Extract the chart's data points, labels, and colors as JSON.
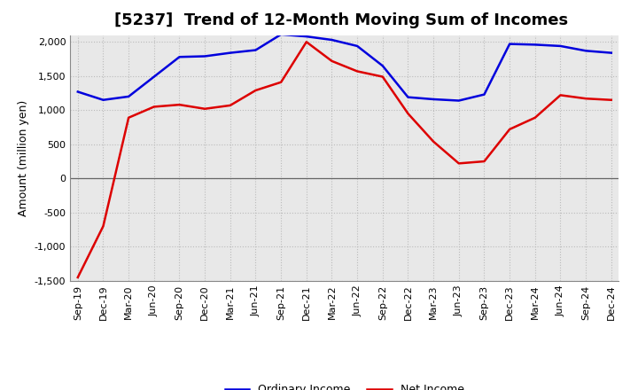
{
  "title": "[5237]  Trend of 12-Month Moving Sum of Incomes",
  "ylabel": "Amount (million yen)",
  "background_color": "#ffffff",
  "plot_bg_color": "#e8e8e8",
  "grid_color": "#bbbbbb",
  "x_labels": [
    "Sep-19",
    "Dec-19",
    "Mar-20",
    "Jun-20",
    "Sep-20",
    "Dec-20",
    "Mar-21",
    "Jun-21",
    "Sep-21",
    "Dec-21",
    "Mar-22",
    "Jun-22",
    "Sep-22",
    "Dec-22",
    "Mar-23",
    "Jun-23",
    "Sep-23",
    "Dec-23",
    "Mar-24",
    "Jun-24",
    "Sep-24",
    "Dec-24"
  ],
  "ordinary_income": [
    1270,
    1150,
    1200,
    1490,
    1780,
    1790,
    1840,
    1880,
    2110,
    2080,
    2030,
    1940,
    1650,
    1190,
    1160,
    1140,
    1230,
    1970,
    1960,
    1940,
    1870,
    1840
  ],
  "net_income": [
    -1450,
    -700,
    890,
    1050,
    1080,
    1020,
    1070,
    1290,
    1410,
    2000,
    1720,
    1570,
    1490,
    950,
    540,
    220,
    250,
    720,
    890,
    1220,
    1170,
    1150
  ],
  "ordinary_color": "#0000dd",
  "net_color": "#dd0000",
  "ylim": [
    -1500,
    2100
  ],
  "yticks": [
    -1500,
    -1000,
    -500,
    0,
    500,
    1000,
    1500,
    2000
  ],
  "line_width": 1.8,
  "legend_labels": [
    "Ordinary Income",
    "Net Income"
  ],
  "title_fontsize": 13,
  "tick_fontsize": 8,
  "ylabel_fontsize": 9
}
